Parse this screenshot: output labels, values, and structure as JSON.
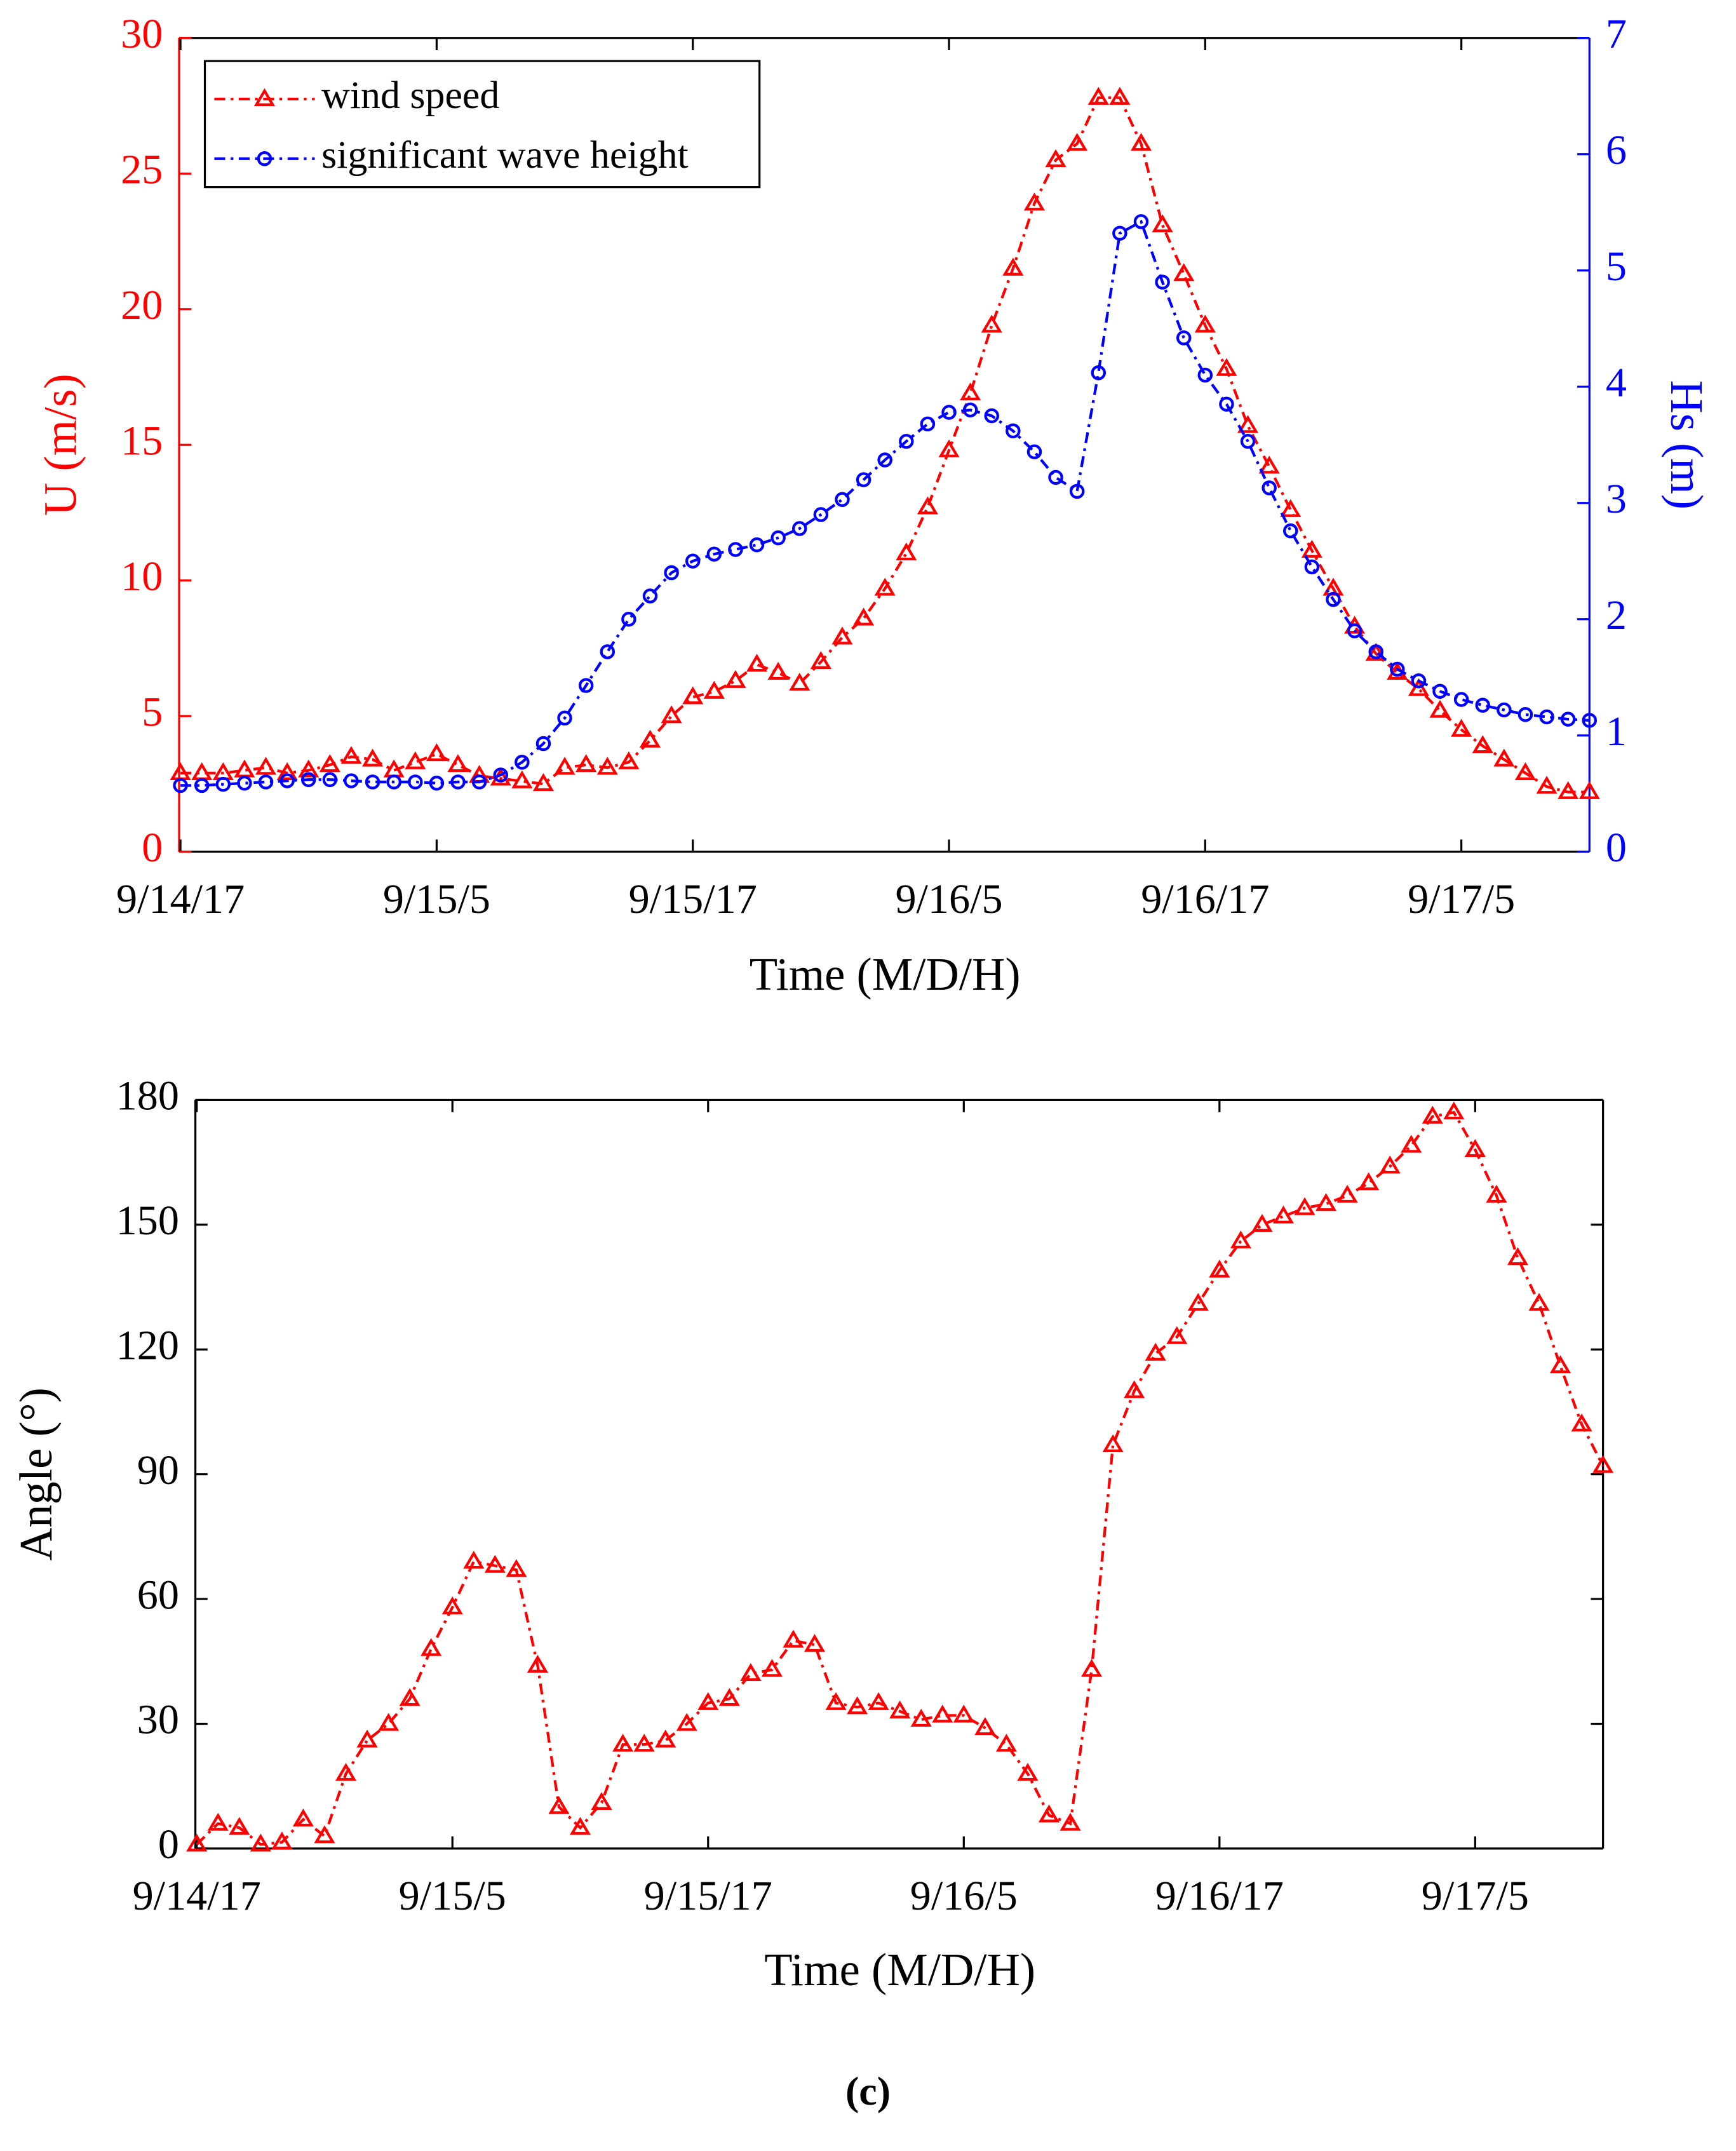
{
  "chart_data": [
    {
      "type": "line",
      "xlabel": "Time (M/D/H)",
      "ylabel": "U (m/s)",
      "y2label": "Hs (m)",
      "x": [
        0,
        1,
        2,
        3,
        4,
        5,
        6,
        7,
        8,
        9,
        10,
        11,
        12,
        13,
        14,
        15,
        16,
        17,
        18,
        19,
        20,
        21,
        22,
        23,
        24,
        25,
        26,
        27,
        28,
        29,
        30,
        31,
        32,
        33,
        34,
        35,
        36,
        37,
        38,
        39,
        40,
        41,
        42,
        43,
        44,
        45,
        46,
        47,
        48,
        49,
        50,
        51,
        52,
        53,
        54,
        55,
        56,
        57,
        58,
        59,
        60,
        61,
        62,
        63,
        64,
        65,
        66
      ],
      "xlim": [
        0,
        66
      ],
      "xticks": [
        {
          "value": 0,
          "label": "9/14/17"
        },
        {
          "value": 12,
          "label": "9/15/5"
        },
        {
          "value": 24,
          "label": "9/15/17"
        },
        {
          "value": 36,
          "label": "9/16/5"
        },
        {
          "value": 48,
          "label": "9/16/17"
        },
        {
          "value": 60,
          "label": "9/17/5"
        }
      ],
      "ylim": [
        0,
        30
      ],
      "yticks": [
        0,
        5,
        10,
        15,
        20,
        25,
        30
      ],
      "y2lim": [
        0,
        7
      ],
      "y2ticks": [
        0,
        1,
        2,
        3,
        4,
        5,
        6,
        7
      ],
      "ycolor": "#ff0000",
      "y2color": "#0000ff",
      "legend": "upper left",
      "series": [
        {
          "name": "wind speed",
          "color": "#ff0000",
          "marker": "triangle",
          "axis": "y",
          "values": [
            2.9,
            2.9,
            2.9,
            3.0,
            3.1,
            2.9,
            3.0,
            3.2,
            3.5,
            3.4,
            3.0,
            3.3,
            3.6,
            3.2,
            2.8,
            2.7,
            2.6,
            2.5,
            3.1,
            3.2,
            3.1,
            3.3,
            4.1,
            5.0,
            5.7,
            5.9,
            6.3,
            6.9,
            6.6,
            6.2,
            7.0,
            7.9,
            8.6,
            9.7,
            11.0,
            12.7,
            14.8,
            16.9,
            19.4,
            21.5,
            23.9,
            25.5,
            26.1,
            27.8,
            27.8,
            26.1,
            23.1,
            21.3,
            19.4,
            17.8,
            15.7,
            14.2,
            12.6,
            11.1,
            9.7,
            8.3,
            7.3,
            6.6,
            6.0,
            5.2,
            4.5,
            3.9,
            3.4,
            2.9,
            2.4,
            2.2,
            2.2
          ]
        },
        {
          "name": "significant wave height",
          "color": "#0000ff",
          "marker": "circle",
          "axis": "y2",
          "values": [
            0.57,
            0.57,
            0.58,
            0.59,
            0.6,
            0.61,
            0.62,
            0.62,
            0.61,
            0.6,
            0.6,
            0.6,
            0.59,
            0.6,
            0.6,
            0.66,
            0.77,
            0.93,
            1.15,
            1.43,
            1.72,
            2.0,
            2.2,
            2.4,
            2.5,
            2.56,
            2.6,
            2.64,
            2.7,
            2.78,
            2.9,
            3.03,
            3.2,
            3.37,
            3.53,
            3.68,
            3.78,
            3.8,
            3.75,
            3.62,
            3.44,
            3.22,
            3.1,
            4.12,
            5.32,
            5.42,
            4.9,
            4.42,
            4.1,
            3.85,
            3.53,
            3.13,
            2.76,
            2.45,
            2.17,
            1.9,
            1.72,
            1.57,
            1.47,
            1.38,
            1.31,
            1.26,
            1.22,
            1.18,
            1.16,
            1.14,
            1.13
          ]
        }
      ]
    },
    {
      "type": "line",
      "xlabel": "Time (M/D/H)",
      "ylabel": "Angle (°)",
      "x": [
        0,
        1,
        2,
        3,
        4,
        5,
        6,
        7,
        8,
        9,
        10,
        11,
        12,
        13,
        14,
        15,
        16,
        17,
        18,
        19,
        20,
        21,
        22,
        23,
        24,
        25,
        26,
        27,
        28,
        29,
        30,
        31,
        32,
        33,
        34,
        35,
        36,
        37,
        38,
        39,
        40,
        41,
        42,
        43,
        44,
        45,
        46,
        47,
        48,
        49,
        50,
        51,
        52,
        53,
        54,
        55,
        56,
        57,
        58,
        59,
        60,
        61,
        62,
        63,
        64,
        65,
        66
      ],
      "xlim": [
        0,
        66
      ],
      "xticks": [
        {
          "value": 0,
          "label": "9/14/17"
        },
        {
          "value": 12,
          "label": "9/15/5"
        },
        {
          "value": 24,
          "label": "9/15/17"
        },
        {
          "value": 36,
          "label": "9/16/5"
        },
        {
          "value": 48,
          "label": "9/16/17"
        },
        {
          "value": 60,
          "label": "9/17/5"
        }
      ],
      "ylim": [
        0,
        180
      ],
      "yticks": [
        0,
        30,
        60,
        90,
        120,
        150,
        180
      ],
      "ycolor": "#000000",
      "series": [
        {
          "color": "#ff0000",
          "marker": "triangle",
          "axis": "y",
          "values": [
            1,
            6,
            5,
            1,
            1.5,
            7,
            3,
            18,
            26,
            30,
            36,
            48,
            58,
            69,
            68,
            67,
            44,
            10,
            5,
            11,
            25,
            25,
            26,
            30,
            35,
            36,
            42,
            43,
            50,
            49,
            35,
            34,
            35,
            33,
            31,
            32,
            32,
            29,
            25,
            18,
            8,
            6,
            43,
            97,
            110,
            119,
            123,
            131,
            139,
            146,
            150,
            152,
            154,
            155,
            157,
            160,
            164,
            169,
            176,
            177,
            168,
            157,
            142,
            131,
            116,
            102,
            92
          ]
        }
      ]
    }
  ],
  "caption": "(c)"
}
